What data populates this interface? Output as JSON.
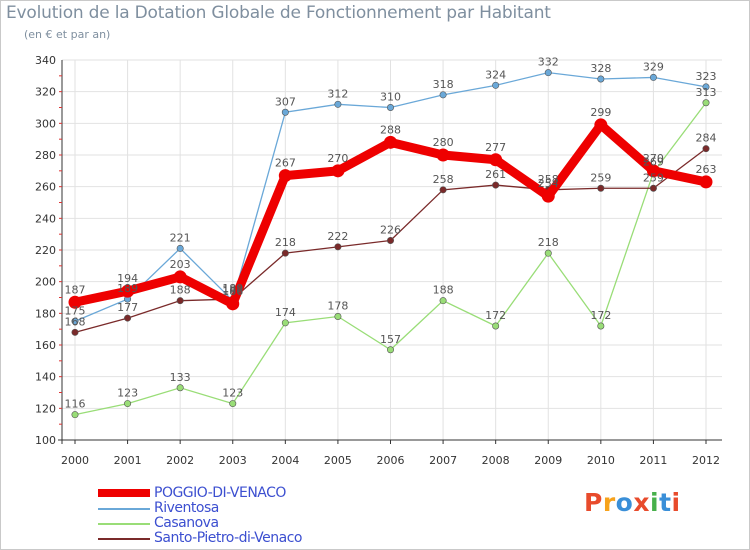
{
  "title": "Evolution de la Dotation Globale de Fonctionnement par Habitant",
  "subtitle": "(en € et par an)",
  "brand": {
    "text": "Proxiti",
    "letter_colors": [
      "#e84b2c",
      "#f7a21b",
      "#3a8fd8",
      "#e84b2c",
      "#47b04b",
      "#3a8fd8",
      "#e84b2c"
    ]
  },
  "chart_data": {
    "type": "line",
    "title": "Evolution de la Dotation Globale de Fonctionnement par Habitant",
    "subtitle": "(en € et par an)",
    "xlabel": "",
    "ylabel": "",
    "x": [
      "2000",
      "2001",
      "2002",
      "2003",
      "2004",
      "2005",
      "2006",
      "2007",
      "2008",
      "2009",
      "2010",
      "2011",
      "2012"
    ],
    "ylim": [
      100,
      340
    ],
    "yticks": [
      100,
      120,
      140,
      160,
      180,
      200,
      220,
      240,
      260,
      280,
      300,
      320,
      340
    ],
    "grid": true,
    "legend_position": "bottom-left",
    "series": [
      {
        "name": "POGGIO-DI-VENACO",
        "color": "#ee0000",
        "emphasis": true,
        "values": [
          187,
          194,
          203,
          186,
          267,
          270,
          288,
          280,
          277,
          254,
          299,
          270,
          263
        ],
        "labels": [
          "187",
          "194",
          "203",
          "186",
          "267",
          "270",
          "288",
          "280",
          "277",
          "254",
          "299",
          "270",
          "263"
        ]
      },
      {
        "name": "Riventosa",
        "color": "#6aa8d8",
        "emphasis": false,
        "values": [
          175,
          189,
          221,
          188,
          307,
          312,
          310,
          318,
          324,
          332,
          328,
          329,
          323
        ],
        "labels": [
          "175",
          "189",
          "221",
          "188",
          "307",
          "312",
          "310",
          "318",
          "324",
          "332",
          "328",
          "329",
          "323"
        ]
      },
      {
        "name": "Casanova",
        "color": "#99dd77",
        "emphasis": false,
        "values": [
          116,
          123,
          133,
          123,
          174,
          178,
          157,
          188,
          172,
          218,
          172,
          269,
          313
        ],
        "labels": [
          "116",
          "123",
          "133",
          "123",
          "174",
          "178",
          "157",
          "188",
          "172",
          "218",
          "172",
          "269",
          "313"
        ]
      },
      {
        "name": "Santo-Pietro-di-Venaco",
        "color": "#7a2a2a",
        "emphasis": false,
        "values": [
          168,
          177,
          188,
          189,
          218,
          222,
          226,
          258,
          261,
          258,
          259,
          259,
          284
        ],
        "labels": [
          "168",
          "177",
          "188",
          "189",
          "218",
          "222",
          "226",
          "258",
          "261",
          "258",
          "259",
          "259",
          "284"
        ]
      }
    ]
  }
}
